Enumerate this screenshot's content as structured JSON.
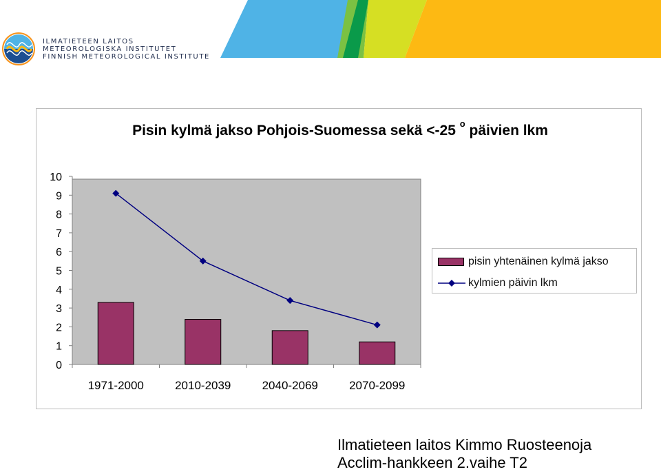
{
  "header": {
    "org_lines": [
      "ILMATIETEEN LAITOS",
      "METEOROLOGISKA INSTITUTET",
      "FINNISH METEOROLOGICAL INSTITUTE"
    ],
    "band_colors": [
      "#4fb3e6",
      "#7bc143",
      "#d6df23",
      "#fdb913",
      "#f7941d"
    ]
  },
  "chart_data": {
    "type": "bar",
    "title": "Pisin kylmä jakso Pohjois-Suomessa sekä <-25",
    "title_superscript": "o",
    "title_suffix": "päivien lkm",
    "categories": [
      "1971-2000",
      "2010-2039",
      "2040-2069",
      "2070-2099"
    ],
    "ylim": [
      0,
      10
    ],
    "yticks": [
      "0",
      "1",
      "2",
      "3",
      "4",
      "5",
      "6",
      "7",
      "8",
      "9",
      "10"
    ],
    "series": [
      {
        "name": "pisin yhtenäinen kylmä jakso",
        "type": "bar",
        "color": "#993366",
        "values": [
          3.3,
          2.4,
          1.8,
          1.2
        ]
      },
      {
        "name": "kylmien päivin lkm",
        "type": "line",
        "color": "#000080",
        "values": [
          9.1,
          5.5,
          3.4,
          2.1
        ]
      }
    ],
    "plot_background": "#c0c0c0",
    "grid": false,
    "legend_position": "right"
  },
  "footer": {
    "line1": "Ilmatieteen laitos Kimmo Ruosteenoja",
    "line2": "Acclim-hankkeen 2.vaihe T2"
  }
}
